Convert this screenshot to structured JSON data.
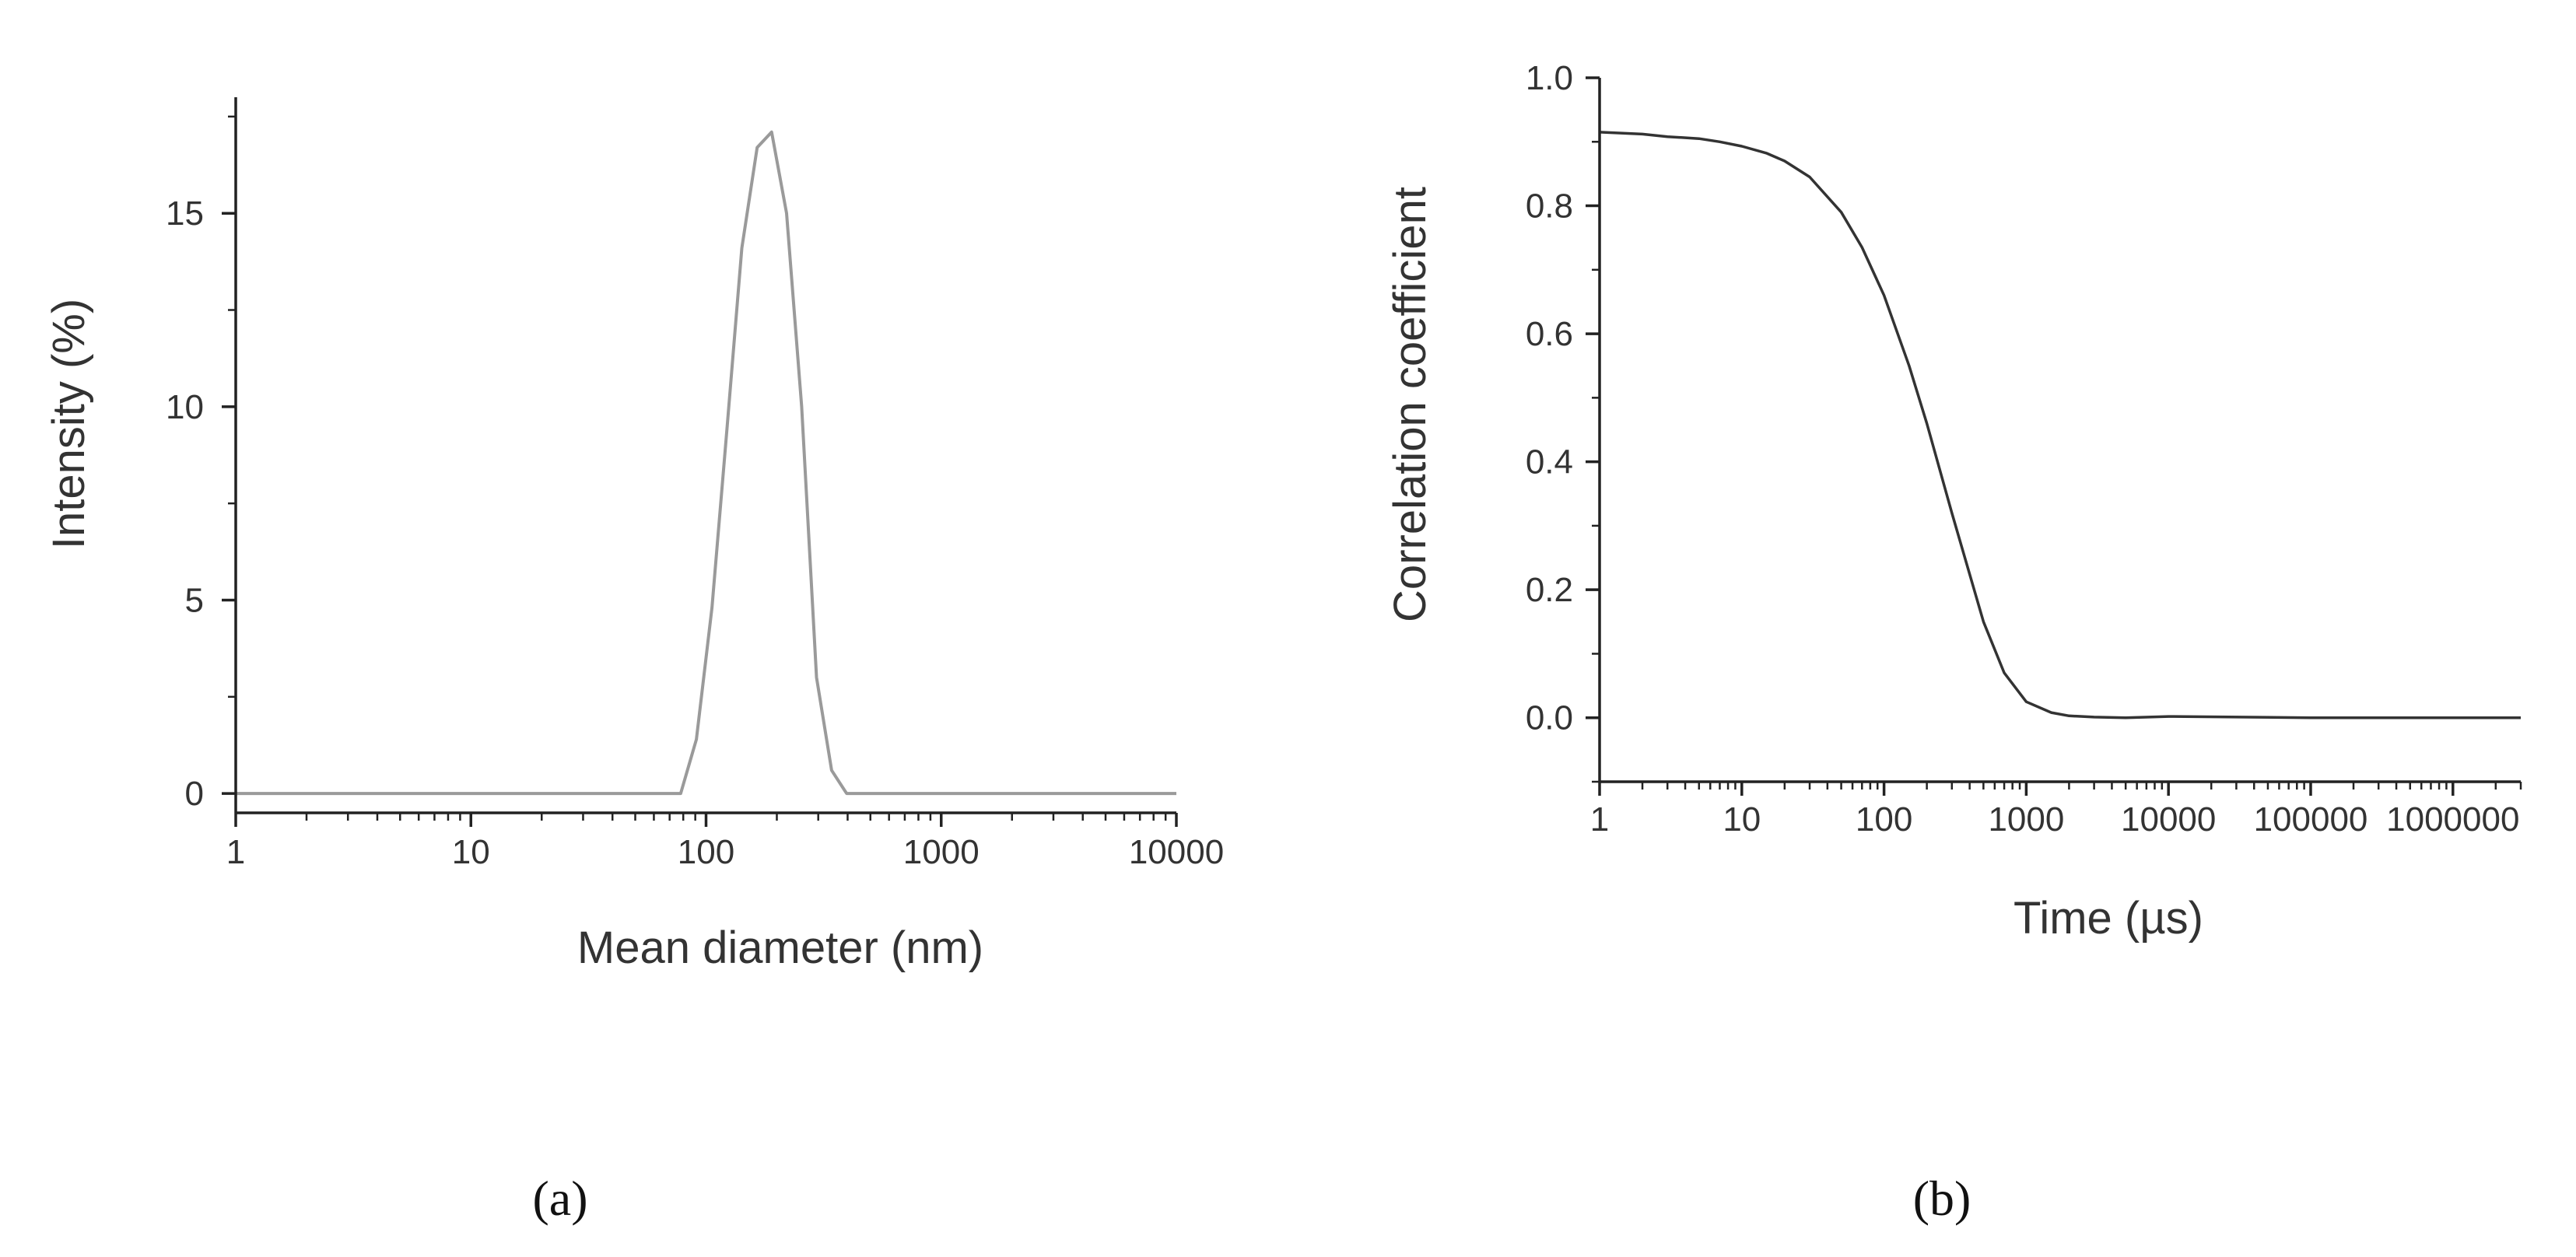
{
  "chart_data": [
    {
      "panel": "a",
      "type": "line",
      "xlabel": "Mean diameter (nm)",
      "ylabel": "Intensity (%)",
      "xscale": "log",
      "xlim": [
        1,
        10000
      ],
      "ylim": [
        -0.5,
        18
      ],
      "xticks": [
        "1",
        "10",
        "100",
        "1000",
        "10000"
      ],
      "yticks": [
        "0",
        "5",
        "10",
        "15"
      ],
      "line_color": "#9a9a9a",
      "series": [
        {
          "x": [
            1,
            78,
            91,
            106,
            123,
            142,
            165,
            190,
            220,
            255,
            295,
            342,
            396,
            460,
            10000
          ],
          "y": [
            0,
            0,
            1.4,
            4.8,
            9.5,
            14.1,
            16.7,
            17.1,
            15.0,
            10.0,
            3.0,
            0.6,
            0,
            0,
            0
          ]
        }
      ]
    },
    {
      "panel": "b",
      "type": "line",
      "xlabel": "Time (µs)",
      "ylabel": "Correlation coefficient",
      "xscale": "log",
      "xlim": [
        1,
        3000000
      ],
      "ylim": [
        -0.1,
        1.0
      ],
      "xticks": [
        "1",
        "10",
        "100",
        "1000",
        "10000",
        "100000",
        "1000000"
      ],
      "yticks": [
        "0.0",
        "0.2",
        "0.4",
        "0.6",
        "0.8",
        "1.0"
      ],
      "line_color": "#333333",
      "series": [
        {
          "x": [
            1,
            2,
            3,
            5,
            7,
            10,
            15,
            20,
            30,
            50,
            70,
            100,
            150,
            200,
            300,
            500,
            700,
            1000,
            1500,
            2000,
            3000,
            5000,
            10000,
            100000,
            1000000,
            3000000
          ],
          "y": [
            0.915,
            0.912,
            0.908,
            0.905,
            0.9,
            0.893,
            0.882,
            0.87,
            0.845,
            0.79,
            0.735,
            0.66,
            0.55,
            0.46,
            0.32,
            0.15,
            0.07,
            0.025,
            0.008,
            0.003,
            0.001,
            0.0,
            0.002,
            0.0,
            0.0,
            0.0
          ]
        }
      ]
    }
  ],
  "panel_labels": {
    "a": "(a)",
    "b": "(b)"
  }
}
